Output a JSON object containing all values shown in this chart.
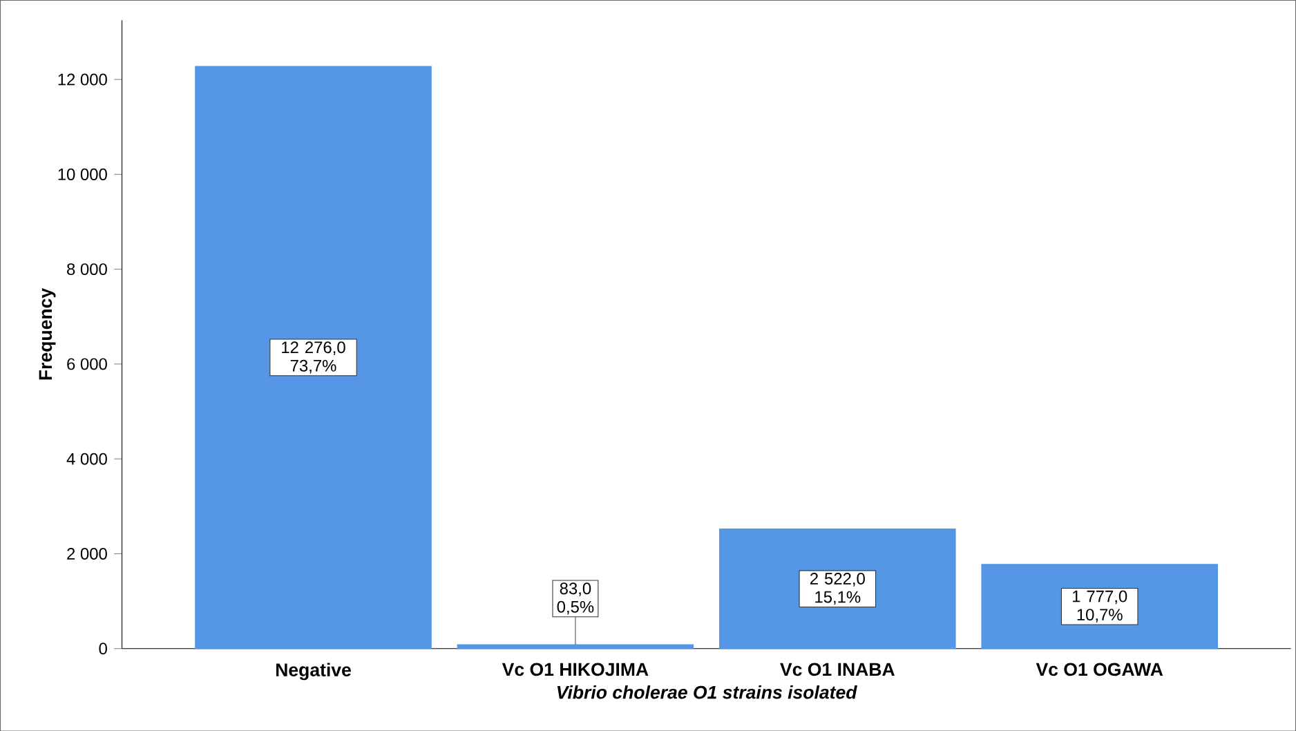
{
  "chart_data": {
    "type": "bar",
    "xlabel": "Vibrio cholerae O1 strains isolated",
    "ylabel": "Frequency",
    "categories": [
      "Negative",
      "Vc O1 HIKOJIMA",
      "Vc O1 INABA",
      "Vc O1 OGAWA"
    ],
    "values": [
      12276,
      83,
      2522,
      1777
    ],
    "value_labels": [
      "12 276,0 73,7%",
      "83,0 0,5%",
      "2 522,0 15,1%",
      "1 777,0 10,7%"
    ],
    "color": "#5596e6",
    "ylim": [
      0,
      13250
    ],
    "yticks": [
      0,
      {
        "value": 2000,
        "label": "2 000"
      },
      {
        "value": 4000,
        "label": "4 000"
      },
      {
        "value": 6000,
        "label": "6 000"
      },
      {
        "value": 8000,
        "label": "8 000"
      },
      {
        "value": 10000,
        "label": "10 000"
      },
      {
        "value": 12000,
        "label": "12 000"
      }
    ],
    "grid": false
  }
}
